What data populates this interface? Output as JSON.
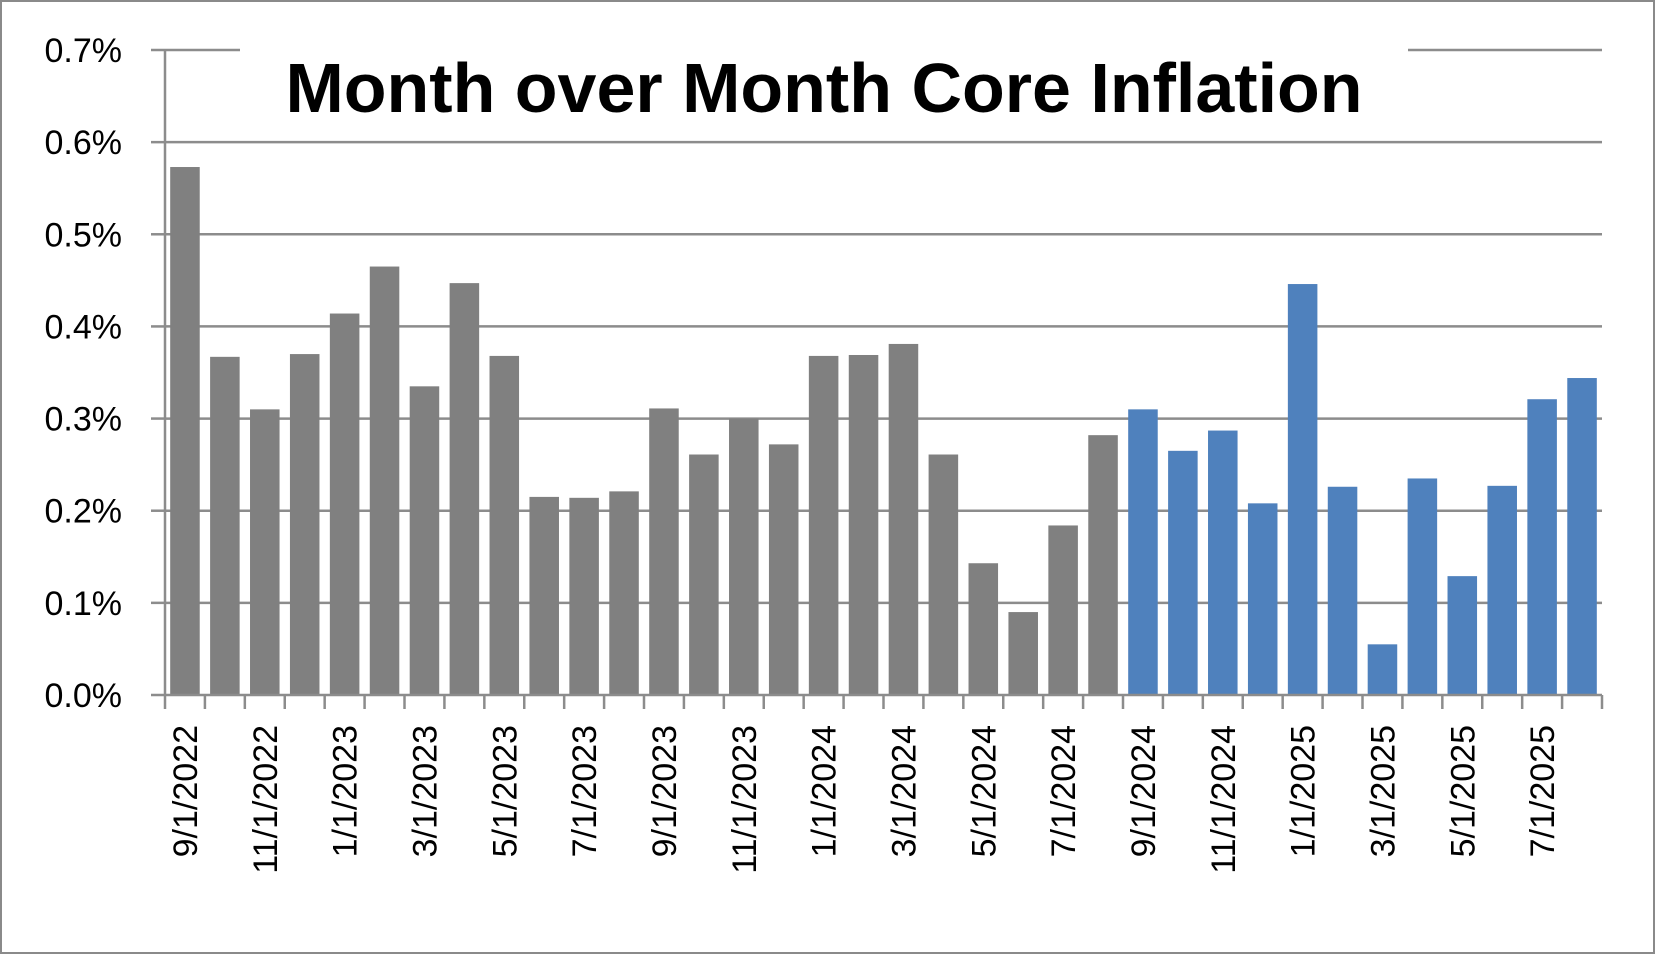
{
  "chart_data": {
    "type": "bar",
    "title": "Month over Month Core Inflation",
    "xlabel": "",
    "ylabel": "",
    "ylim": [
      0,
      0.7
    ],
    "yticks": [
      "0.0%",
      "0.1%",
      "0.2%",
      "0.3%",
      "0.4%",
      "0.5%",
      "0.6%",
      "0.7%"
    ],
    "grid": true,
    "x_tick_labels": [
      "9/1/2022",
      "11/1/2022",
      "1/1/2023",
      "3/1/2023",
      "5/1/2023",
      "7/1/2023",
      "9/1/2023",
      "11/1/2023",
      "1/1/2024",
      "3/1/2024",
      "5/1/2024",
      "7/1/2024",
      "9/1/2024",
      "11/1/2024",
      "1/1/2025",
      "3/1/2025",
      "5/1/2025",
      "7/1/2025"
    ],
    "categories": [
      "9/1/2022",
      "10/1/2022",
      "11/1/2022",
      "12/1/2022",
      "1/1/2023",
      "2/1/2023",
      "3/1/2023",
      "4/1/2023",
      "5/1/2023",
      "6/1/2023",
      "7/1/2023",
      "8/1/2023",
      "9/1/2023",
      "10/1/2023",
      "11/1/2023",
      "12/1/2023",
      "1/1/2024",
      "2/1/2024",
      "3/1/2024",
      "4/1/2024",
      "5/1/2024",
      "6/1/2024",
      "7/1/2024",
      "8/1/2024",
      "9/1/2024",
      "10/1/2024",
      "11/1/2024",
      "12/1/2024",
      "1/1/2025",
      "2/1/2025",
      "3/1/2025",
      "4/1/2025",
      "5/1/2025",
      "6/1/2025",
      "7/1/2025",
      "8/1/2025"
    ],
    "values": [
      0.573,
      0.367,
      0.31,
      0.37,
      0.414,
      0.465,
      0.335,
      0.447,
      0.368,
      0.215,
      0.214,
      0.221,
      0.311,
      0.261,
      0.3,
      0.272,
      0.368,
      0.369,
      0.381,
      0.261,
      0.143,
      0.09,
      0.184,
      0.282,
      0.31,
      0.265,
      0.287,
      0.208,
      0.446,
      0.226,
      0.055,
      0.235,
      0.129,
      0.227,
      0.321,
      0.344
    ],
    "bar_colors": [
      "#808080",
      "#808080",
      "#808080",
      "#808080",
      "#808080",
      "#808080",
      "#808080",
      "#808080",
      "#808080",
      "#808080",
      "#808080",
      "#808080",
      "#808080",
      "#808080",
      "#808080",
      "#808080",
      "#808080",
      "#808080",
      "#808080",
      "#808080",
      "#808080",
      "#808080",
      "#808080",
      "#808080",
      "#4f81bd",
      "#4f81bd",
      "#4f81bd",
      "#4f81bd",
      "#4f81bd",
      "#4f81bd",
      "#4f81bd",
      "#4f81bd",
      "#4f81bd",
      "#4f81bd",
      "#4f81bd",
      "#4f81bd"
    ],
    "colors": {
      "gray": "#808080",
      "blue": "#4f81bd",
      "grid": "#8c8c8c",
      "axis": "#8c8c8c"
    }
  }
}
